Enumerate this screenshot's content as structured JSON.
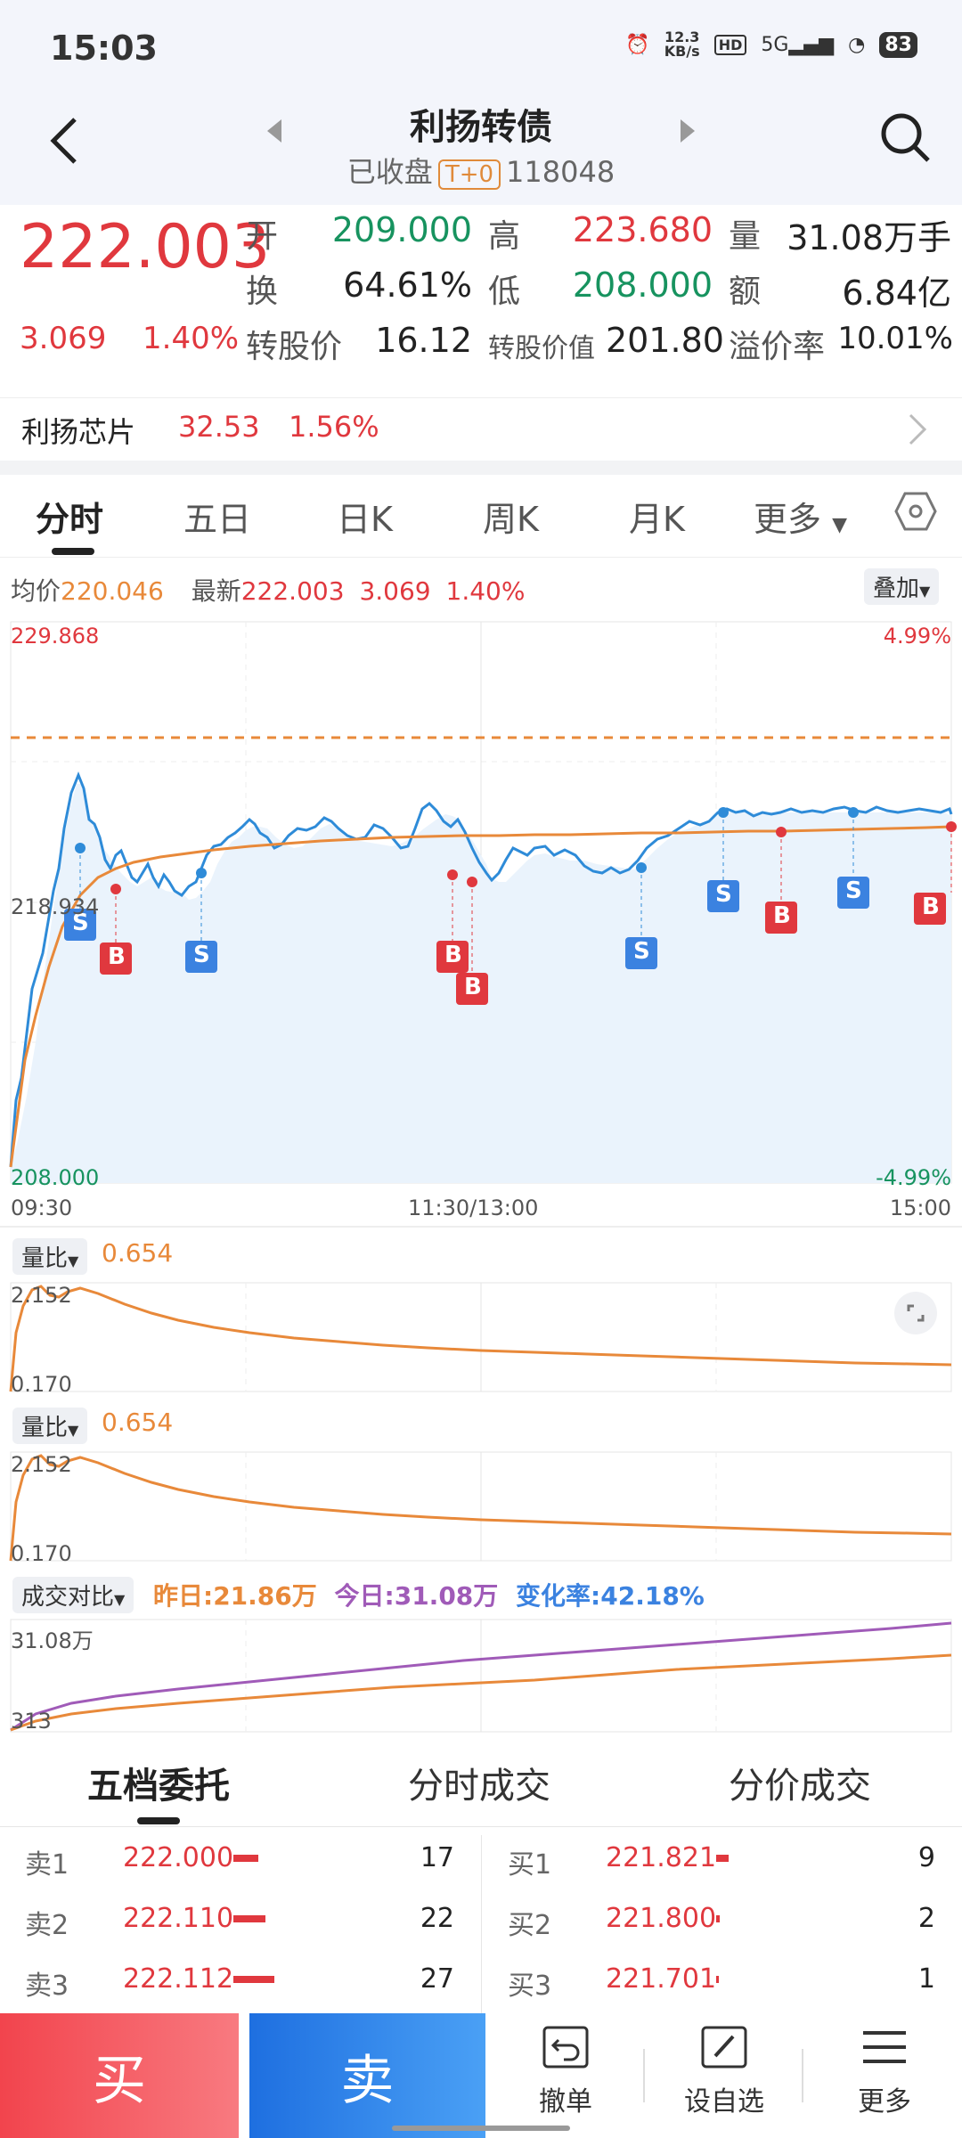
{
  "status": {
    "time": "15:03",
    "net_speed_top": "12.3",
    "net_speed_bottom": "KB/s",
    "hd": "HD",
    "signal": "5G",
    "battery": "83"
  },
  "header": {
    "title": "利扬转债",
    "status": "已收盘",
    "tag": "T+0",
    "code": "118048"
  },
  "quote": {
    "price": "222.003",
    "change": "3.069",
    "change_pct": "1.40%",
    "open_label": "开",
    "open": "209.000",
    "high_label": "高",
    "high": "223.680",
    "volume_label": "量",
    "volume": "31.08万手",
    "turnover_label": "换",
    "turnover": "64.61%",
    "low_label": "低",
    "low": "208.000",
    "amount_label": "额",
    "amount": "6.84亿",
    "conv_price_label": "转股价",
    "conv_price": "16.12",
    "conv_value_label": "转股价值",
    "conv_value": "201.80",
    "premium_label": "溢价率",
    "premium": "10.01%"
  },
  "underlying": {
    "name": "利扬芯片",
    "price": "32.53",
    "pct": "1.56%"
  },
  "tabs": [
    "分时",
    "五日",
    "日K",
    "周K",
    "月K",
    "更多"
  ],
  "chart_info": {
    "avg_label": "均价",
    "avg": "220.046",
    "latest_label": "最新",
    "latest": "222.003",
    "latest_change": "3.069",
    "latest_pct": "1.40%",
    "overlay": "叠加"
  },
  "chart_axis": {
    "y_max": "229.868",
    "y_mid": "218.934",
    "y_min": "208.000",
    "pct_max": "4.99%",
    "pct_min": "-4.99%",
    "t_start": "09:30",
    "t_mid": "11:30/13:00",
    "t_end": "15:00"
  },
  "volume_ratio": {
    "label": "量比",
    "value": "0.654",
    "max": "2.152",
    "min": "0.170"
  },
  "compare": {
    "label": "成交对比",
    "yesterday": "昨日:21.86万",
    "today": "今日:31.08万",
    "rate": "变化率:42.18%",
    "max": "31.08万",
    "min": "313"
  },
  "order_tabs": [
    "五档委托",
    "分时成交",
    "分价成交"
  ],
  "sell_orders": [
    {
      "label": "卖1",
      "price": "222.000",
      "qty": "17"
    },
    {
      "label": "卖2",
      "price": "222.110",
      "qty": "22"
    },
    {
      "label": "卖3",
      "price": "222.112",
      "qty": "27"
    }
  ],
  "buy_orders": [
    {
      "label": "买1",
      "price": "221.821",
      "qty": "9"
    },
    {
      "label": "买2",
      "price": "221.800",
      "qty": "2"
    },
    {
      "label": "买3",
      "price": "221.701",
      "qty": "1"
    }
  ],
  "bottom": {
    "buy": "买",
    "sell": "卖",
    "cancel": "撤单",
    "watchlist": "设自选",
    "more": "更多"
  },
  "markers": {
    "s": "S",
    "b": "B"
  },
  "colors": {
    "red": "#e0383e",
    "green": "#17935f",
    "blue": "#2e8bd8",
    "orange": "#e8893a",
    "purple": "#a05bb8"
  }
}
